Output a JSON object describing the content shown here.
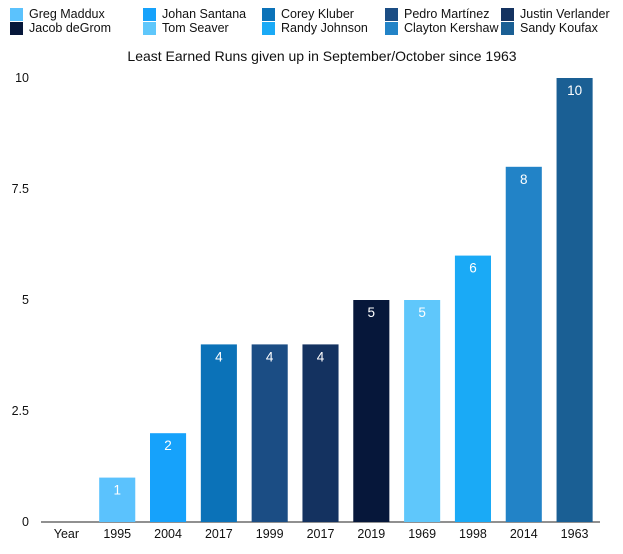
{
  "legend": [
    {
      "label": "Greg Maddux",
      "color": "#5bc2fd"
    },
    {
      "label": "Johan Santana",
      "color": "#16a2fb"
    },
    {
      "label": "Corey Kluber",
      "color": "#0b72b8"
    },
    {
      "label": "Pedro Martínez",
      "color": "#1b4d84"
    },
    {
      "label": "Justin Verlander",
      "color": "#143260"
    },
    {
      "label": "Jacob deGrom",
      "color": "#06173a"
    },
    {
      "label": "Tom Seaver",
      "color": "#5fc7fb"
    },
    {
      "label": "Randy Johnson",
      "color": "#1aaaf6"
    },
    {
      "label": "Clayton Kershaw",
      "color": "#2283c7"
    },
    {
      "label": "Sandy Koufax",
      "color": "#1a5f94"
    }
  ],
  "chart_data": {
    "type": "bar",
    "title": "Least Earned Runs given up in September/October since 1963",
    "xlabel": "",
    "ylabel": "",
    "ylim": [
      0,
      10
    ],
    "yticks": [
      "0",
      "2.5",
      "5",
      "7.5",
      "10"
    ],
    "grid": false,
    "legend_position": "top",
    "categories": [
      "Year",
      "1995",
      "2004",
      "2017",
      "1999",
      "2017",
      "2019",
      "1969",
      "1998",
      "2014",
      "1963"
    ],
    "series": [
      {
        "name": "Greg Maddux",
        "values": [
          null,
          1,
          null,
          null,
          null,
          null,
          null,
          null,
          null,
          null,
          null
        ],
        "color": "#5bc2fd"
      },
      {
        "name": "Johan Santana",
        "values": [
          null,
          null,
          2,
          null,
          null,
          null,
          null,
          null,
          null,
          null,
          null
        ],
        "color": "#16a2fb"
      },
      {
        "name": "Corey Kluber",
        "values": [
          null,
          null,
          null,
          4,
          null,
          null,
          null,
          null,
          null,
          null,
          null
        ],
        "color": "#0b72b8"
      },
      {
        "name": "Pedro Martínez",
        "values": [
          null,
          null,
          null,
          null,
          4,
          null,
          null,
          null,
          null,
          null,
          null
        ],
        "color": "#1b4d84"
      },
      {
        "name": "Justin Verlander",
        "values": [
          null,
          null,
          null,
          null,
          null,
          4,
          null,
          null,
          null,
          null,
          null
        ],
        "color": "#143260"
      },
      {
        "name": "Jacob deGrom",
        "values": [
          null,
          null,
          null,
          null,
          null,
          null,
          5,
          null,
          null,
          null,
          null
        ],
        "color": "#06173a"
      },
      {
        "name": "Tom Seaver",
        "values": [
          null,
          null,
          null,
          null,
          null,
          null,
          null,
          5,
          null,
          null,
          null
        ],
        "color": "#5fc7fb"
      },
      {
        "name": "Randy Johnson",
        "values": [
          null,
          null,
          null,
          null,
          null,
          null,
          null,
          null,
          6,
          null,
          null
        ],
        "color": "#1aaaf6"
      },
      {
        "name": "Clayton Kershaw",
        "values": [
          null,
          null,
          null,
          null,
          null,
          null,
          null,
          null,
          null,
          8,
          null
        ],
        "color": "#2283c7"
      },
      {
        "name": "Sandy Koufax",
        "values": [
          null,
          null,
          null,
          null,
          null,
          null,
          null,
          null,
          null,
          null,
          10
        ],
        "color": "#1a5f94"
      }
    ],
    "data_labels": [
      "",
      "1",
      "2",
      "4",
      "4",
      "4",
      "5",
      "5",
      "6",
      "8",
      "10"
    ]
  }
}
